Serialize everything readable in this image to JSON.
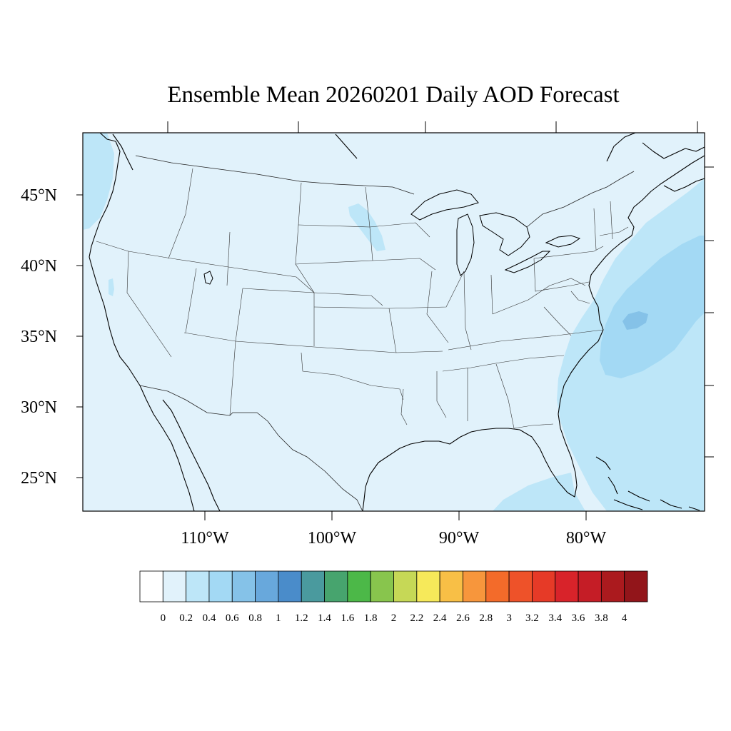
{
  "title": "Ensemble Mean 20260201 Daily AOD Forecast",
  "map": {
    "projection": "lambert-conformal",
    "region": "Contiguous United States",
    "variable": "AOD",
    "lat_labels": [
      "45°N",
      "40°N",
      "35°N",
      "30°N",
      "25°N"
    ],
    "lon_labels": [
      "110°W",
      "100°W",
      "90°W",
      "80°W"
    ],
    "background_color": "#e1f2fb",
    "aod_regions": [
      {
        "name": "atlantic-offshore",
        "range": "0.2-0.4",
        "color": "#bde6f8"
      },
      {
        "name": "atlantic-core",
        "range": "0.4-0.6",
        "color": "#a3d9f4"
      },
      {
        "name": "atlantic-max",
        "range": "0.6-0.8",
        "color": "#85c2e8"
      },
      {
        "name": "gulf-of-mexico",
        "range": "0.2-0.4",
        "color": "#bde6f8"
      },
      {
        "name": "pacific-northwest",
        "range": "0.2-0.4",
        "color": "#bde6f8"
      },
      {
        "name": "north-dakota-minnesota",
        "range": "0.2-0.4",
        "color": "#bde6f8"
      }
    ]
  },
  "colorbar": {
    "labels": [
      "0",
      "0.2",
      "0.4",
      "0.6",
      "0.8",
      "1",
      "1.2",
      "1.4",
      "1.6",
      "1.8",
      "2",
      "2.2",
      "2.4",
      "2.6",
      "2.8",
      "3",
      "3.2",
      "3.4",
      "3.6",
      "3.8",
      "4"
    ],
    "colors": [
      "#ffffff",
      "#e1f2fb",
      "#bde6f8",
      "#a3d9f4",
      "#85c2e8",
      "#68a8dc",
      "#4a8cca",
      "#4a9a9e",
      "#47a46e",
      "#4cb848",
      "#88c54d",
      "#c6d856",
      "#f6e95a",
      "#f8bf46",
      "#f7963c",
      "#f36b2a",
      "#ee5229",
      "#e63a27",
      "#d8232a",
      "#c51d26",
      "#ab1a1e",
      "#92151a"
    ]
  }
}
